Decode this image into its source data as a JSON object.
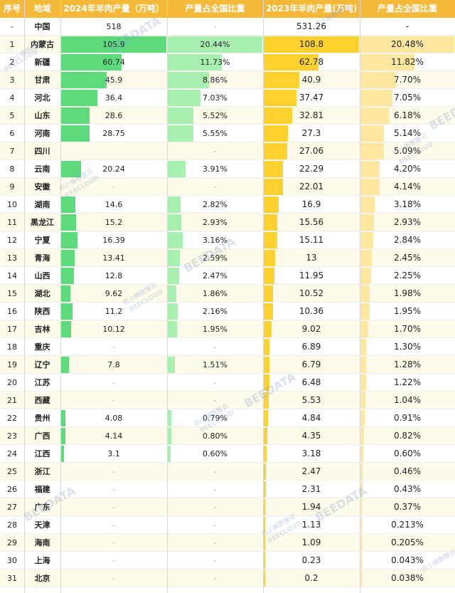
{
  "chart_data": {
    "type": "table",
    "headers": [
      "序号",
      "地域",
      "2024年羊肉产量（万吨）",
      "产量占全国比重",
      "2023年羊肉产量(万吨)",
      "产量占全国比重"
    ],
    "national": {
      "rank": "-",
      "region": "中国",
      "v2024": "518",
      "s2024": "-",
      "v2023": "531.26",
      "s2023": "-"
    },
    "rows": [
      {
        "rank": "1",
        "region": "内蒙古",
        "v2024": "105.9",
        "s2024": "20.44%",
        "v2023": "108.8",
        "s2023": "20.48%"
      },
      {
        "rank": "2",
        "region": "新疆",
        "v2024": "60.74",
        "s2024": "11.73%",
        "v2023": "62.78",
        "s2023": "11.82%"
      },
      {
        "rank": "3",
        "region": "甘肃",
        "v2024": "45.9",
        "s2024": "8.86%",
        "v2023": "40.9",
        "s2023": "7.70%"
      },
      {
        "rank": "4",
        "region": "河北",
        "v2024": "36.4",
        "s2024": "7.03%",
        "v2023": "37.47",
        "s2023": "7.05%"
      },
      {
        "rank": "5",
        "region": "山东",
        "v2024": "28.6",
        "s2024": "5.52%",
        "v2023": "32.81",
        "s2023": "6.18%"
      },
      {
        "rank": "6",
        "region": "河南",
        "v2024": "28.75",
        "s2024": "5.55%",
        "v2023": "27.3",
        "s2023": "5.14%"
      },
      {
        "rank": "7",
        "region": "四川",
        "v2024": "",
        "s2024": "-",
        "v2023": "27.06",
        "s2023": "5.09%"
      },
      {
        "rank": "8",
        "region": "云南",
        "v2024": "20.24",
        "s2024": "3.91%",
        "v2023": "22.29",
        "s2023": "4.20%"
      },
      {
        "rank": "9",
        "region": "安徽",
        "v2024": "-",
        "s2024": "-",
        "v2023": "22.01",
        "s2023": "4.14%"
      },
      {
        "rank": "10",
        "region": "湖南",
        "v2024": "14.6",
        "s2024": "2.82%",
        "v2023": "16.9",
        "s2023": "3.18%"
      },
      {
        "rank": "11",
        "region": "黑龙江",
        "v2024": "15.2",
        "s2024": "2.93%",
        "v2023": "15.56",
        "s2023": "2.93%"
      },
      {
        "rank": "12",
        "region": "宁夏",
        "v2024": "16.39",
        "s2024": "3.16%",
        "v2023": "15.11",
        "s2023": "2.84%"
      },
      {
        "rank": "13",
        "region": "青海",
        "v2024": "13.41",
        "s2024": "2.59%",
        "v2023": "13",
        "s2023": "2.45%"
      },
      {
        "rank": "14",
        "region": "山西",
        "v2024": "12.8",
        "s2024": "2.47%",
        "v2023": "11.95",
        "s2023": "2.25%"
      },
      {
        "rank": "15",
        "region": "湖北",
        "v2024": "9.62",
        "s2024": "1.86%",
        "v2023": "10.52",
        "s2023": "1.98%"
      },
      {
        "rank": "16",
        "region": "陕西",
        "v2024": "11.2",
        "s2024": "2.16%",
        "v2023": "10.36",
        "s2023": "1.95%"
      },
      {
        "rank": "17",
        "region": "吉林",
        "v2024": "10.12",
        "s2024": "1.95%",
        "v2023": "9.02",
        "s2023": "1.70%"
      },
      {
        "rank": "18",
        "region": "重庆",
        "v2024": "-",
        "s2024": "-",
        "v2023": "6.89",
        "s2023": "1.30%"
      },
      {
        "rank": "19",
        "region": "辽宁",
        "v2024": "7.8",
        "s2024": "1.51%",
        "v2023": "6.79",
        "s2023": "1.28%"
      },
      {
        "rank": "20",
        "region": "江苏",
        "v2024": "-",
        "s2024": "-",
        "v2023": "6.48",
        "s2023": "1.22%"
      },
      {
        "rank": "21",
        "region": "西藏",
        "v2024": "-",
        "s2024": "-",
        "v2023": "5.53",
        "s2023": "1.04%"
      },
      {
        "rank": "22",
        "region": "贵州",
        "v2024": "4.08",
        "s2024": "0.79%",
        "v2023": "4.84",
        "s2023": "0.91%"
      },
      {
        "rank": "23",
        "region": "广西",
        "v2024": "4.14",
        "s2024": "0.80%",
        "v2023": "4.35",
        "s2023": "0.82%"
      },
      {
        "rank": "24",
        "region": "江西",
        "v2024": "3.1",
        "s2024": "0.60%",
        "v2023": "3.18",
        "s2023": "0.60%"
      },
      {
        "rank": "25",
        "region": "浙江",
        "v2024": "-",
        "s2024": "-",
        "v2023": "2.47",
        "s2023": "0.46%"
      },
      {
        "rank": "26",
        "region": "福建",
        "v2024": "-",
        "s2024": "-",
        "v2023": "2.31",
        "s2023": "0.43%"
      },
      {
        "rank": "27",
        "region": "广东",
        "v2024": "-",
        "s2024": "-",
        "v2023": "1.94",
        "s2023": "0.37%"
      },
      {
        "rank": "28",
        "region": "天津",
        "v2024": "-",
        "s2024": "-",
        "v2023": "1.13",
        "s2023": "0.213%"
      },
      {
        "rank": "29",
        "region": "海南",
        "v2024": "-",
        "s2024": "-",
        "v2023": "1.09",
        "s2023": "0.205%"
      },
      {
        "rank": "30",
        "region": "上海",
        "v2024": "-",
        "s2024": "-",
        "v2023": "0.23",
        "s2023": "0.043%"
      },
      {
        "rank": "31",
        "region": "北京",
        "v2024": "-",
        "s2024": "-",
        "v2023": "0.2",
        "s2023": "0.038%"
      }
    ]
  },
  "colors": {
    "header": "#f5b93a",
    "bar2024": "#5ddb7c",
    "share2024": "#a7f0b0",
    "bar2023": "#fdd22e",
    "share2023": "#ffe7a0"
  },
  "watermark": {
    "brand": "BEEDATA",
    "cn": "农小蜂数智云",
    "en": "BEECLOUD"
  }
}
